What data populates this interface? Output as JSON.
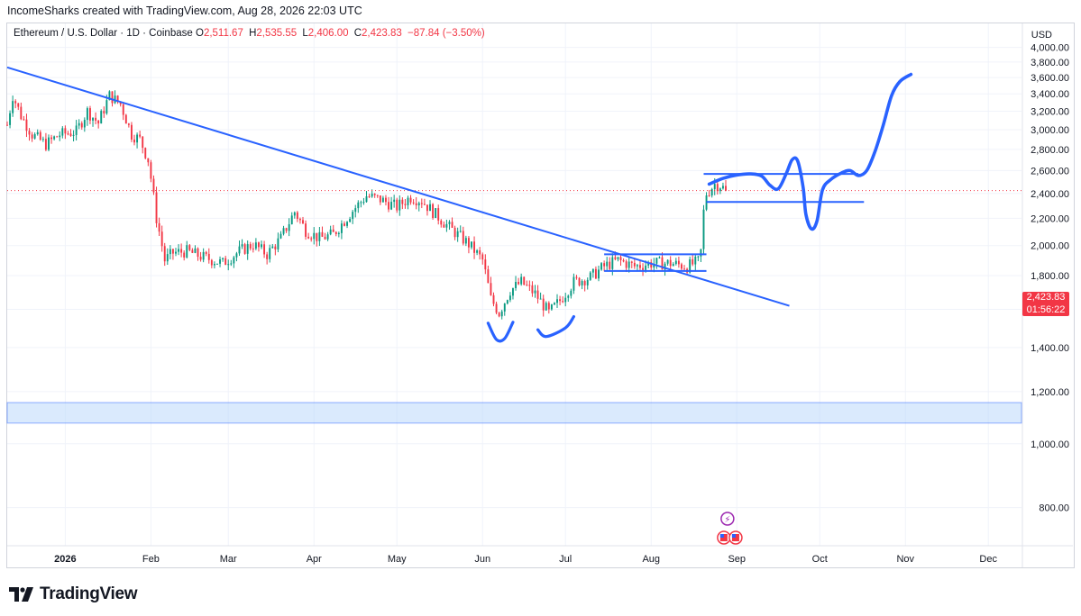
{
  "header": {
    "attribution": "IncomeSharks created with TradingView.com, Aug 28, 2026 22:03 UTC"
  },
  "legend": {
    "symbol": "Ethereum / U.S. Dollar · 1D · Coinbase",
    "o_label": "O",
    "o_value": "2,511.67",
    "h_label": "H",
    "h_value": "2,535.55",
    "l_label": "L",
    "l_value": "2,406.00",
    "c_label": "C",
    "c_value": "2,423.83",
    "change": "−87.84 (−3.50%)"
  },
  "axis": {
    "currency": "USD"
  },
  "price_tag": {
    "price": "2,423.83",
    "countdown": "01:56:22"
  },
  "footer": {
    "brand": "TradingView"
  },
  "colors": {
    "up": "#089981",
    "down": "#f23645",
    "drawing": "#2962ff",
    "zone_fill": "#bbd9fb",
    "grid": "#f0f3fa"
  },
  "events": [
    {
      "name": "crypto-event-icon",
      "symbol": "⚡",
      "color": "#9c27b0"
    },
    {
      "name": "us-flag-event-icon",
      "symbol": "🇺🇸",
      "color": "#f23645"
    }
  ],
  "chart_data": {
    "type": "candlestick",
    "symbol": "ETHUSD",
    "interval": "1D",
    "ylim": [
      700,
      4350
    ],
    "y_scale": "log",
    "y_ticks": [
      800,
      1000,
      1200,
      1400,
      1600,
      1800,
      2000,
      2200,
      2400,
      2600,
      2800,
      3000,
      3200,
      3400,
      3600,
      3800,
      4000
    ],
    "y_tick_labels": [
      "800.00",
      "1,000.00",
      "1,200.00",
      "1,400.00",
      "1,600.00",
      "1,800.00",
      "2,000.00",
      "2,200.00",
      "2,400.00",
      "2,600.00",
      "2,800.00",
      "3,000.00",
      "3,200.00",
      "3,400.00",
      "3,600.00",
      "3,800.00",
      "4,000.00"
    ],
    "x_range": [
      "2025-12-11",
      "2026-12-13"
    ],
    "x_ticks": [
      {
        "date": "2026-01-01",
        "label": "2026",
        "bold": true
      },
      {
        "date": "2026-02-01",
        "label": "Feb"
      },
      {
        "date": "2026-03-01",
        "label": "Mar"
      },
      {
        "date": "2026-04-01",
        "label": "Apr"
      },
      {
        "date": "2026-05-01",
        "label": "May"
      },
      {
        "date": "2026-06-01",
        "label": "Jun"
      },
      {
        "date": "2026-07-01",
        "label": "Jul"
      },
      {
        "date": "2026-08-01",
        "label": "Aug"
      },
      {
        "date": "2026-09-01",
        "label": "Sep"
      },
      {
        "date": "2026-10-01",
        "label": "Oct"
      },
      {
        "date": "2026-11-01",
        "label": "Nov"
      },
      {
        "date": "2026-12-01",
        "label": "Dec"
      }
    ],
    "last_price": 2423.83,
    "anchors": [
      [
        "2025-12-11",
        3050
      ],
      [
        "2025-12-13",
        3380
      ],
      [
        "2025-12-16",
        3150
      ],
      [
        "2025-12-20",
        2950
      ],
      [
        "2025-12-25",
        2850
      ],
      [
        "2025-12-30",
        2950
      ],
      [
        "2026-01-05",
        2980
      ],
      [
        "2026-01-09",
        3200
      ],
      [
        "2026-01-13",
        3070
      ],
      [
        "2026-01-17",
        3380
      ],
      [
        "2026-01-21",
        3280
      ],
      [
        "2026-01-25",
        2950
      ],
      [
        "2026-01-28",
        2900
      ],
      [
        "2026-01-31",
        2700
      ],
      [
        "2026-02-03",
        2200
      ],
      [
        "2026-02-06",
        1900
      ],
      [
        "2026-02-09",
        1950
      ],
      [
        "2026-02-14",
        1960
      ],
      [
        "2026-02-20",
        1920
      ],
      [
        "2026-02-27",
        1880
      ],
      [
        "2026-03-05",
        1960
      ],
      [
        "2026-03-10",
        2010
      ],
      [
        "2026-03-15",
        1940
      ],
      [
        "2026-03-20",
        2050
      ],
      [
        "2026-03-25",
        2250
      ],
      [
        "2026-03-29",
        2110
      ],
      [
        "2026-04-03",
        2050
      ],
      [
        "2026-04-08",
        2080
      ],
      [
        "2026-04-15",
        2260
      ],
      [
        "2026-04-20",
        2380
      ],
      [
        "2026-04-25",
        2350
      ],
      [
        "2026-05-01",
        2290
      ],
      [
        "2026-05-06",
        2370
      ],
      [
        "2026-05-10",
        2340
      ],
      [
        "2026-05-15",
        2230
      ],
      [
        "2026-05-20",
        2130
      ],
      [
        "2026-05-27",
        2010
      ],
      [
        "2026-06-01",
        1900
      ],
      [
        "2026-06-04",
        1660
      ],
      [
        "2026-06-07",
        1580
      ],
      [
        "2026-06-11",
        1710
      ],
      [
        "2026-06-15",
        1760
      ],
      [
        "2026-06-20",
        1690
      ],
      [
        "2026-06-25",
        1580
      ],
      [
        "2026-06-29",
        1650
      ],
      [
        "2026-07-04",
        1760
      ],
      [
        "2026-07-10",
        1790
      ],
      [
        "2026-07-15",
        1860
      ],
      [
        "2026-07-20",
        1900
      ],
      [
        "2026-07-26",
        1860
      ],
      [
        "2026-08-01",
        1880
      ],
      [
        "2026-08-08",
        1880
      ],
      [
        "2026-08-14",
        1860
      ],
      [
        "2026-08-18",
        1890
      ],
      [
        "2026-08-19",
        1960
      ],
      [
        "2026-08-20",
        2250
      ],
      [
        "2026-08-21",
        2400
      ],
      [
        "2026-08-24",
        2480
      ],
      [
        "2026-08-26",
        2470
      ],
      [
        "2026-08-28",
        2423.83
      ]
    ],
    "drawings": {
      "trendline": {
        "from": [
          "2025-12-11",
          3730
        ],
        "to": [
          "2026-09-20",
          1620
        ]
      },
      "support_zone": {
        "y": [
          1075,
          1155
        ],
        "x": [
          "2025-12-11",
          "2026-12-13"
        ]
      },
      "lines": [
        {
          "from": [
            "2026-07-15",
            1940
          ],
          "to": [
            "2026-08-21",
            1940
          ]
        },
        {
          "from": [
            "2026-07-15",
            1830
          ],
          "to": [
            "2026-08-21",
            1830
          ]
        },
        {
          "from": [
            "2026-08-20",
            2570
          ],
          "to": [
            "2026-10-15",
            2570
          ]
        },
        {
          "from": [
            "2026-08-21",
            2330
          ],
          "to": [
            "2026-10-17",
            2330
          ]
        }
      ],
      "bottom_arcs": [
        [
          [
            "2026-06-03",
            1525
          ],
          [
            "2026-06-06",
            1440
          ],
          [
            "2026-06-09",
            1445
          ],
          [
            "2026-06-12",
            1530
          ]
        ],
        [
          [
            "2026-06-21",
            1490
          ],
          [
            "2026-06-24",
            1455
          ],
          [
            "2026-07-01",
            1500
          ],
          [
            "2026-07-04",
            1560
          ]
        ]
      ],
      "projection": [
        [
          "2026-08-22",
          2480
        ],
        [
          "2026-08-27",
          2530
        ],
        [
          "2026-09-01",
          2560
        ],
        [
          "2026-09-06",
          2570
        ],
        [
          "2026-09-10",
          2550
        ],
        [
          "2026-09-13",
          2470
        ],
        [
          "2026-09-16",
          2440
        ],
        [
          "2026-09-19",
          2580
        ],
        [
          "2026-09-21",
          2700
        ],
        [
          "2026-09-23",
          2690
        ],
        [
          "2026-09-25",
          2450
        ],
        [
          "2026-09-26",
          2230
        ],
        [
          "2026-09-28",
          2120
        ],
        [
          "2026-09-30",
          2180
        ],
        [
          "2026-10-02",
          2430
        ],
        [
          "2026-10-05",
          2520
        ],
        [
          "2026-10-09",
          2580
        ],
        [
          "2026-10-12",
          2600
        ],
        [
          "2026-10-15",
          2555
        ],
        [
          "2026-10-18",
          2600
        ],
        [
          "2026-10-21",
          2780
        ],
        [
          "2026-10-24",
          3050
        ],
        [
          "2026-10-27",
          3380
        ],
        [
          "2026-10-30",
          3550
        ],
        [
          "2026-11-03",
          3640
        ]
      ]
    },
    "event_dates": [
      "2026-08-26",
      "2026-08-27"
    ]
  }
}
